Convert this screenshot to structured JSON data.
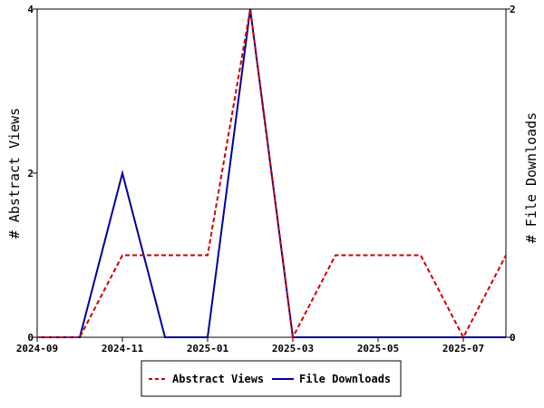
{
  "chart_data": {
    "type": "line",
    "x": [
      "2024-09",
      "2024-10",
      "2024-11",
      "2024-12",
      "2025-01",
      "2025-02",
      "2025-03",
      "2025-04",
      "2025-05",
      "2025-06",
      "2025-07",
      "2025-08"
    ],
    "x_tick_labels": [
      "2024-09",
      "2024-11",
      "2025-01",
      "2025-03",
      "2025-05",
      "2025-07"
    ],
    "series": [
      {
        "name": "Abstract Views",
        "axis": "left",
        "color": "#cc0000",
        "style": "dashed",
        "values": [
          0,
          0,
          1,
          1,
          1,
          4,
          0,
          1,
          1,
          1,
          0,
          1
        ]
      },
      {
        "name": "File Downloads",
        "axis": "right",
        "color": "#000099",
        "style": "solid",
        "values": [
          0,
          0,
          1,
          0,
          0,
          2,
          0,
          0,
          0,
          0,
          0,
          0
        ]
      }
    ],
    "ylabel": "# Abstract Views",
    "ylabel_right": "# File Downloads",
    "ylim": [
      0,
      4
    ],
    "yticks": [
      "0",
      "2",
      "4"
    ],
    "ylim_right": [
      0,
      2
    ],
    "yticks_right": [
      "0",
      "2"
    ],
    "grid": false,
    "legend_position": "bottom-center"
  }
}
